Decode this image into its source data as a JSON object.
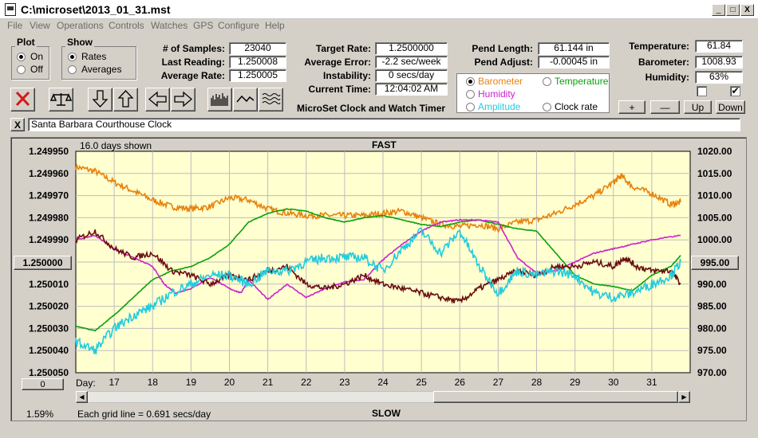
{
  "window": {
    "title": "C:\\microset\\2013_01_31.mst",
    "minimize": "_",
    "maximize": "□",
    "close": "X"
  },
  "menu": [
    "File",
    "View",
    "Operations",
    "Controls",
    "Watches",
    "GPS",
    "Configure",
    "Help"
  ],
  "plot_group": {
    "title": "Plot",
    "options": [
      "On",
      "Off"
    ],
    "selected": "On"
  },
  "show_group": {
    "title": "Show",
    "options": [
      "Rates",
      "Averages"
    ],
    "selected": "Rates"
  },
  "stats": {
    "samples_label": "# of Samples:",
    "samples": "23040",
    "last_reading_label": "Last Reading:",
    "last_reading": "1.250008",
    "average_rate_label": "Average Rate:",
    "average_rate": "1.250005",
    "target_rate_label": "Target Rate:",
    "target_rate": "1.2500000",
    "average_error_label": "Average Error:",
    "average_error": "-2.2 sec/week",
    "instability_label": "Instability:",
    "instability": "0 secs/day",
    "current_time_label": "Current Time:",
    "current_time": "12:04:02 AM",
    "pend_length_label": "Pend Length:",
    "pend_length": "61.144 in",
    "pend_adjust_label": "Pend Adjust:",
    "pend_adjust": "-0.00045 in",
    "temperature_label": "Temperature:",
    "temperature": "61.84",
    "barometer_label": "Barometer:",
    "barometer": "1008.93",
    "humidity_label": "Humidity:",
    "humidity": "63%"
  },
  "app_caption": "MicroSet Clock and Watch Timer",
  "series_selector": {
    "options": [
      {
        "label": "Barometer",
        "color": "#e8820c",
        "selected": true
      },
      {
        "label": "Temperature",
        "color": "#0aa00a",
        "selected": false
      },
      {
        "label": "Humidity",
        "color": "#cc22cc",
        "selected": false
      },
      {
        "label": "Clock rate",
        "color": "#000000",
        "selected": false
      },
      {
        "label": "Amplitude",
        "color": "#22ccdd",
        "selected": false
      }
    ]
  },
  "right_buttons": {
    "plus": "+",
    "minus": "—",
    "up": "Up",
    "down": "Down"
  },
  "checkboxes": [
    {
      "checked": false,
      "mark": ""
    },
    {
      "checked": true,
      "mark": "✔"
    }
  ],
  "clock_name": "Santa Barbara Courthouse Clock",
  "clock_close": "X",
  "toolbar_icons": [
    "delete-icon",
    "balance-scale-icon",
    "arrow-down-icon",
    "arrow-up-icon",
    "arrow-left-icon",
    "arrow-right-icon",
    "histogram-icon",
    "wave-icon",
    "waves-icon"
  ],
  "left_offset_button": "1.250000",
  "right_offset_button": "995.00",
  "bottom_left_value": "0",
  "bottom_percent": "1.59%",
  "chart_data": {
    "type": "line",
    "top_label": "FAST",
    "bottom_label": "SLOW",
    "days_shown": "16.0 days shown",
    "grid_note": "Each grid line = 0.691 secs/day",
    "x_axis_label": "Day:",
    "x_ticks": [
      17,
      18,
      19,
      20,
      21,
      22,
      23,
      24,
      25,
      26,
      27,
      28,
      29,
      30,
      31
    ],
    "xlim": [
      16.0,
      32.0
    ],
    "left_ticks": [
      "1.249950",
      "1.249960",
      "1.249970",
      "1.249980",
      "1.249990",
      "1.250000",
      "1.250010",
      "1.250020",
      "1.250030",
      "1.250040",
      "1.250050"
    ],
    "left_ylim": [
      1.24995,
      1.25005
    ],
    "right_ticks": [
      "1020.00",
      "1015.00",
      "1010.00",
      "1005.00",
      "1000.00",
      "995.00",
      "990.00",
      "985.00",
      "980.00",
      "975.00",
      "970.00"
    ],
    "right_ylim": [
      970.0,
      1020.0
    ],
    "grid": true,
    "background": "#ffffd0",
    "series": [
      {
        "name": "Barometer",
        "color": "#e8820c",
        "points": [
          [
            16.0,
            1016.5
          ],
          [
            16.5,
            1015.5
          ],
          [
            17.0,
            1013
          ],
          [
            17.5,
            1011
          ],
          [
            18.0,
            1009
          ],
          [
            18.5,
            1007.5
          ],
          [
            19.0,
            1007
          ],
          [
            19.5,
            1007.5
          ],
          [
            20.0,
            1009.5
          ],
          [
            20.5,
            1009
          ],
          [
            21.0,
            1007
          ],
          [
            21.5,
            1006
          ],
          [
            22.0,
            1005.5
          ],
          [
            22.5,
            1005.5
          ],
          [
            23.0,
            1005.5
          ],
          [
            23.5,
            1005.5
          ],
          [
            24.0,
            1006
          ],
          [
            24.5,
            1006.5
          ],
          [
            25.0,
            1005
          ],
          [
            25.5,
            1003.5
          ],
          [
            26.0,
            1003
          ],
          [
            26.5,
            1003.5
          ],
          [
            27.0,
            1002.5
          ],
          [
            27.5,
            1004
          ],
          [
            28.0,
            1004.5
          ],
          [
            28.5,
            1006
          ],
          [
            29.0,
            1008
          ],
          [
            29.5,
            1010
          ],
          [
            30.0,
            1013
          ],
          [
            30.2,
            1014.5
          ],
          [
            30.5,
            1012
          ],
          [
            31.0,
            1010.5
          ],
          [
            31.5,
            1008
          ],
          [
            31.75,
            1008.5
          ]
        ]
      },
      {
        "name": "Temperature",
        "color": "#0aa00a",
        "points": [
          [
            16.0,
            980.5
          ],
          [
            16.5,
            979.5
          ],
          [
            17.0,
            983
          ],
          [
            17.5,
            987
          ],
          [
            18.0,
            991
          ],
          [
            18.5,
            993
          ],
          [
            19.0,
            994
          ],
          [
            19.5,
            996
          ],
          [
            20.0,
            999
          ],
          [
            20.5,
            1004
          ],
          [
            21.0,
            1006
          ],
          [
            21.5,
            1007
          ],
          [
            22.0,
            1006.5
          ],
          [
            22.5,
            1005
          ],
          [
            23.0,
            1004
          ],
          [
            23.5,
            1005
          ],
          [
            24.0,
            1005.5
          ],
          [
            24.5,
            1004.5
          ],
          [
            25.0,
            1003.5
          ],
          [
            25.5,
            1003
          ],
          [
            26.0,
            1004
          ],
          [
            26.5,
            1004.5
          ],
          [
            27.0,
            1003.5
          ],
          [
            27.5,
            1002.5
          ],
          [
            28.0,
            1002
          ],
          [
            28.5,
            997
          ],
          [
            29.0,
            992
          ],
          [
            29.5,
            990
          ],
          [
            30.0,
            989.5
          ],
          [
            30.5,
            988.5
          ],
          [
            31.0,
            992
          ],
          [
            31.5,
            994
          ],
          [
            31.75,
            996.5
          ]
        ]
      },
      {
        "name": "Humidity",
        "color": "#cc22cc",
        "points": [
          [
            16.0,
            1000
          ],
          [
            16.5,
            1001
          ],
          [
            17.0,
            998
          ],
          [
            17.5,
            996
          ],
          [
            18.0,
            994
          ],
          [
            18.3,
            990
          ],
          [
            18.6,
            988
          ],
          [
            19.0,
            989
          ],
          [
            19.5,
            991.5
          ],
          [
            20.0,
            989
          ],
          [
            20.3,
            988
          ],
          [
            20.5,
            991
          ],
          [
            21.0,
            986.5
          ],
          [
            21.5,
            990
          ],
          [
            22.0,
            987
          ],
          [
            22.5,
            989
          ],
          [
            23.0,
            990.5
          ],
          [
            23.5,
            991
          ],
          [
            24.0,
            995.5
          ],
          [
            24.5,
            999
          ],
          [
            25.0,
            1002
          ],
          [
            25.5,
            1004
          ],
          [
            26.0,
            1004.5
          ],
          [
            26.5,
            1004.5
          ],
          [
            27.0,
            1004
          ],
          [
            27.5,
            996
          ],
          [
            28.0,
            992.5
          ],
          [
            28.5,
            993
          ],
          [
            29.0,
            995
          ],
          [
            29.5,
            997
          ],
          [
            30.0,
            998
          ],
          [
            30.5,
            999
          ],
          [
            31.0,
            1000
          ],
          [
            31.75,
            1001
          ]
        ]
      },
      {
        "name": "Clock rate",
        "color": "#6a0f0f",
        "points": [
          [
            16.0,
            1000
          ],
          [
            16.5,
            1002
          ],
          [
            17.0,
            998
          ],
          [
            17.5,
            996
          ],
          [
            18.0,
            997
          ],
          [
            18.5,
            993
          ],
          [
            19.0,
            992
          ],
          [
            19.5,
            990
          ],
          [
            20.0,
            992
          ],
          [
            20.5,
            991
          ],
          [
            21.0,
            993
          ],
          [
            21.5,
            994
          ],
          [
            22.0,
            990
          ],
          [
            22.5,
            989
          ],
          [
            23.0,
            990
          ],
          [
            23.5,
            992
          ],
          [
            24.0,
            990
          ],
          [
            24.5,
            989
          ],
          [
            25.0,
            988
          ],
          [
            25.5,
            987
          ],
          [
            26.0,
            986
          ],
          [
            26.5,
            989
          ],
          [
            27.0,
            991
          ],
          [
            27.5,
            993
          ],
          [
            28.0,
            992
          ],
          [
            28.5,
            994
          ],
          [
            29.0,
            994
          ],
          [
            29.5,
            995
          ],
          [
            30.0,
            994
          ],
          [
            30.3,
            996
          ],
          [
            30.6,
            994
          ],
          [
            31.0,
            993
          ],
          [
            31.5,
            993
          ],
          [
            31.75,
            990
          ]
        ]
      },
      {
        "name": "Amplitude",
        "color": "#22ccdd",
        "points": [
          [
            16.0,
            977
          ],
          [
            16.5,
            975
          ],
          [
            17.0,
            980
          ],
          [
            17.5,
            983
          ],
          [
            18.0,
            985
          ],
          [
            18.5,
            988
          ],
          [
            19.0,
            990
          ],
          [
            19.5,
            992
          ],
          [
            20.0,
            992
          ],
          [
            20.5,
            990
          ],
          [
            21.0,
            993
          ],
          [
            21.5,
            993
          ],
          [
            22.0,
            995
          ],
          [
            22.5,
            996
          ],
          [
            23.0,
            996
          ],
          [
            23.5,
            996
          ],
          [
            24.0,
            993
          ],
          [
            24.5,
            998
          ],
          [
            25.0,
            1002
          ],
          [
            25.5,
            997
          ],
          [
            26.0,
            1002
          ],
          [
            26.5,
            994
          ],
          [
            27.0,
            988
          ],
          [
            27.5,
            993
          ],
          [
            28.0,
            992
          ],
          [
            28.5,
            993
          ],
          [
            29.0,
            992
          ],
          [
            29.5,
            988
          ],
          [
            30.0,
            987
          ],
          [
            30.5,
            988
          ],
          [
            31.0,
            990
          ],
          [
            31.5,
            992
          ],
          [
            31.75,
            995
          ]
        ]
      }
    ]
  },
  "colors": {
    "face": "#d4d0c8",
    "plot_bg": "#ffffd0",
    "grid": "#bdbdbd",
    "delete_red": "#d81818"
  }
}
